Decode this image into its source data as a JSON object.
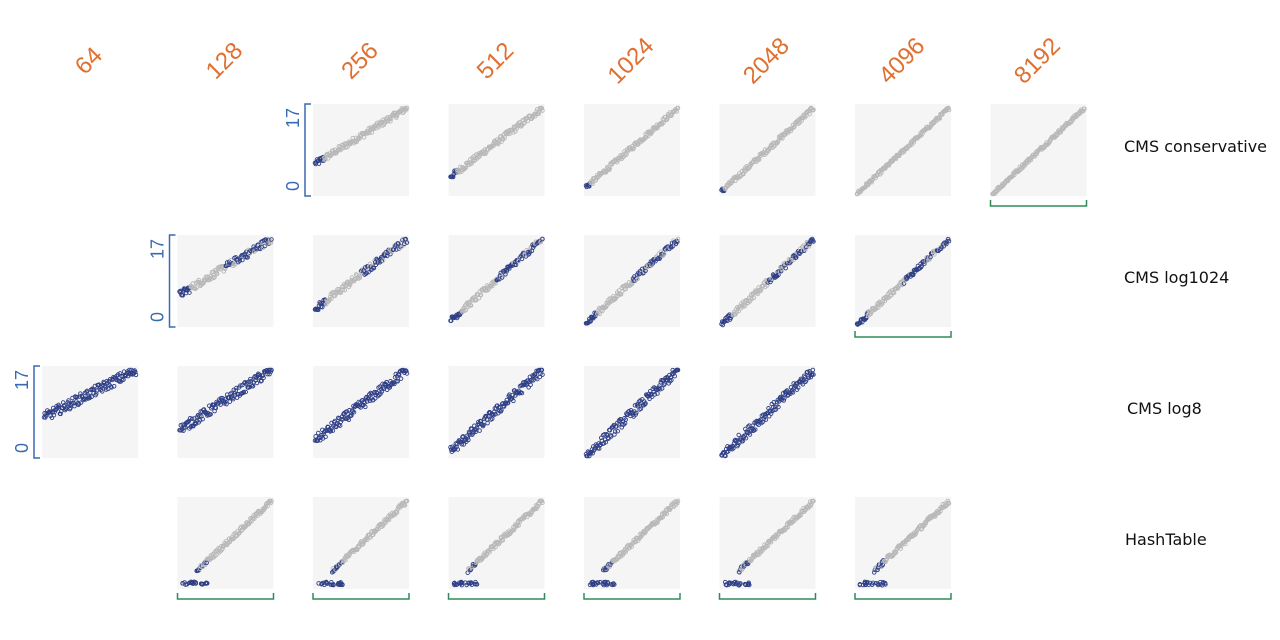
{
  "chart_data": {
    "type": "scatter",
    "layout": "small-multiples grid",
    "columns": [
      "64",
      "128",
      "256",
      "512",
      "1024",
      "2048",
      "4096",
      "8192"
    ],
    "rows": [
      "CMS conservative",
      "CMS log1024",
      "CMS log8",
      "HashTable"
    ],
    "y_ticks": [
      "0",
      "17"
    ],
    "ylim": [
      0,
      17
    ],
    "xlim": [
      0,
      17
    ],
    "grid": false,
    "colors": {
      "column_header": "#e07030",
      "y_axis": "#3a6ab0",
      "x_bracket": "#2e8b57",
      "panel_background": "#f5f5f5",
      "point_highlight": "#2f3f86",
      "point_normal": "#b8b8b8"
    },
    "panels": [
      {
        "row": "CMS conservative",
        "column": "256",
        "floor": 0.35,
        "offset": 0.0,
        "spread": 0.25,
        "dark_until": 0.1,
        "x_axis": false,
        "y_axis": true
      },
      {
        "row": "CMS conservative",
        "column": "512",
        "floor": 0.2,
        "offset": 0.0,
        "spread": 0.25,
        "dark_until": 0.07,
        "x_axis": false,
        "y_axis": false
      },
      {
        "row": "CMS conservative",
        "column": "1024",
        "floor": 0.08,
        "offset": 0.0,
        "spread": 0.2,
        "dark_until": 0.05,
        "x_axis": false,
        "y_axis": false
      },
      {
        "row": "CMS conservative",
        "column": "2048",
        "floor": 0.03,
        "offset": 0.0,
        "spread": 0.2,
        "dark_until": 0.03,
        "x_axis": false,
        "y_axis": false
      },
      {
        "row": "CMS conservative",
        "column": "4096",
        "floor": 0.0,
        "offset": 0.0,
        "spread": 0.15,
        "dark_until": 0.0,
        "x_axis": false,
        "y_axis": false
      },
      {
        "row": "CMS conservative",
        "column": "8192",
        "floor": 0.0,
        "offset": 0.0,
        "spread": 0.15,
        "dark_until": 0.0,
        "x_axis": true,
        "y_axis": false
      },
      {
        "row": "CMS log1024",
        "column": "128",
        "floor": 0.35,
        "offset": 0.0,
        "spread": 0.3,
        "dark_until": 0.8,
        "x_axis": false,
        "y_axis": true
      },
      {
        "row": "CMS log1024",
        "column": "256",
        "floor": 0.18,
        "offset": 0.0,
        "spread": 0.3,
        "dark_until": 0.8,
        "x_axis": false,
        "y_axis": false
      },
      {
        "row": "CMS log1024",
        "column": "512",
        "floor": 0.05,
        "offset": 0.0,
        "spread": 0.25,
        "dark_until": 0.8,
        "x_axis": false,
        "y_axis": false
      },
      {
        "row": "CMS log1024",
        "column": "1024",
        "floor": 0.02,
        "offset": 0.0,
        "spread": 0.25,
        "dark_until": 0.8,
        "x_axis": false,
        "y_axis": false
      },
      {
        "row": "CMS log1024",
        "column": "2048",
        "floor": 0.0,
        "offset": 0.0,
        "spread": 0.25,
        "dark_until": 0.8,
        "x_axis": false,
        "y_axis": false
      },
      {
        "row": "CMS log1024",
        "column": "4096",
        "floor": 0.0,
        "offset": 0.0,
        "spread": 0.2,
        "dark_until": 0.8,
        "x_axis": true,
        "y_axis": false
      },
      {
        "row": "CMS log8",
        "column": "64",
        "floor": 0.45,
        "offset": 0.0,
        "spread": 0.4,
        "dark_until": 1.0,
        "x_axis": false,
        "y_axis": true
      },
      {
        "row": "CMS log8",
        "column": "128",
        "floor": 0.3,
        "offset": 0.0,
        "spread": 0.4,
        "dark_until": 1.0,
        "x_axis": false,
        "y_axis": false
      },
      {
        "row": "CMS log8",
        "column": "256",
        "floor": 0.18,
        "offset": 0.0,
        "spread": 0.4,
        "dark_until": 1.0,
        "x_axis": false,
        "y_axis": false
      },
      {
        "row": "CMS log8",
        "column": "512",
        "floor": 0.05,
        "offset": 0.0,
        "spread": 0.4,
        "dark_until": 1.0,
        "x_axis": false,
        "y_axis": false
      },
      {
        "row": "CMS log8",
        "column": "1024",
        "floor": 0.0,
        "offset": 0.0,
        "spread": 0.4,
        "dark_until": 1.0,
        "x_axis": false,
        "y_axis": false
      },
      {
        "row": "CMS log8",
        "column": "2048",
        "floor": 0.0,
        "offset": 0.0,
        "spread": 0.4,
        "dark_until": 1.0,
        "x_axis": false,
        "y_axis": false
      },
      {
        "row": "HashTable",
        "column": "128",
        "floor": 0.0,
        "offset": 0.0,
        "spread": 0.2,
        "dark_until": 0.05,
        "x_axis": true,
        "y_axis": false
      },
      {
        "row": "HashTable",
        "column": "256",
        "floor": 0.0,
        "offset": 0.0,
        "spread": 0.2,
        "dark_until": 0.05,
        "x_axis": true,
        "y_axis": false
      },
      {
        "row": "HashTable",
        "column": "512",
        "floor": 0.0,
        "offset": 0.0,
        "spread": 0.2,
        "dark_until": 0.05,
        "x_axis": true,
        "y_axis": false
      },
      {
        "row": "HashTable",
        "column": "1024",
        "floor": 0.0,
        "offset": 0.0,
        "spread": 0.2,
        "dark_until": 0.05,
        "x_axis": true,
        "y_axis": false
      },
      {
        "row": "HashTable",
        "column": "2048",
        "floor": 0.0,
        "offset": 0.0,
        "spread": 0.2,
        "dark_until": 0.05,
        "x_axis": true,
        "y_axis": false
      },
      {
        "row": "HashTable",
        "column": "4096",
        "floor": 0.0,
        "offset": 0.0,
        "spread": 0.2,
        "dark_until": 0.05,
        "x_axis": true,
        "y_axis": false
      }
    ]
  }
}
